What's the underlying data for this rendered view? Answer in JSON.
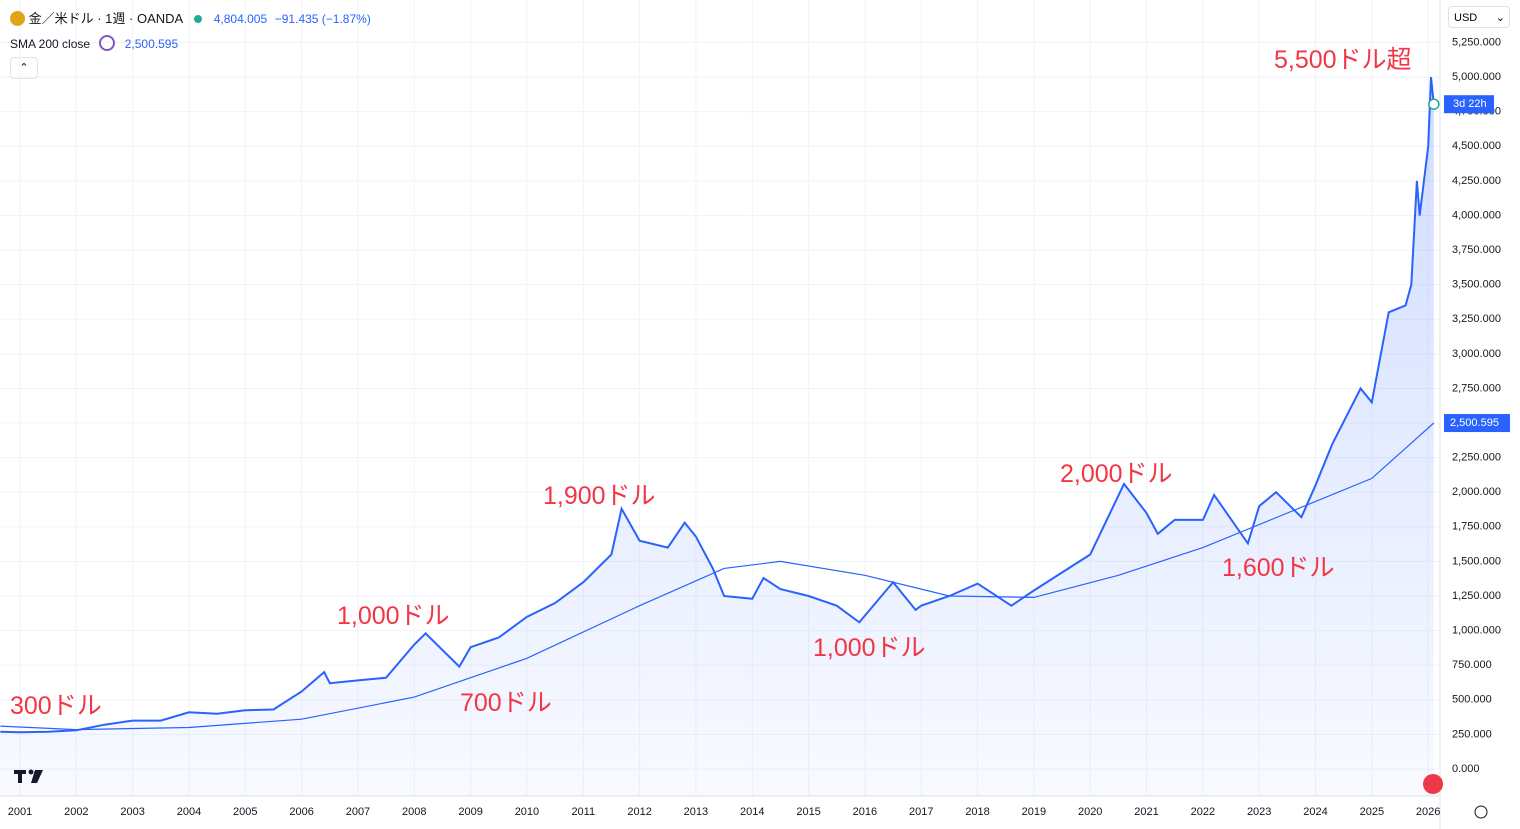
{
  "chart_data": {
    "type": "line",
    "title": "金／米ドル · 1週 · OANDA",
    "last_price": "4,804.005",
    "change": "−91.435 (−1.87%)",
    "indicator": "SMA 200 close",
    "indicator_value": "2,500.595",
    "currency": "USD",
    "countdown": "3d 22h",
    "xlim": [
      2000.645,
      2026.21
    ],
    "xticks": [
      2001,
      2002,
      2003,
      2004,
      2005,
      2006,
      2007,
      2008,
      2009,
      2010,
      2011,
      2012,
      2013,
      2014,
      2015,
      2016,
      2017,
      2018,
      2019,
      2020,
      2021,
      2022,
      2023,
      2024,
      2025,
      2026
    ],
    "ylim": [
      -195,
      5557
    ],
    "yticks": [
      {
        "value": 0,
        "label": "0.000"
      },
      {
        "value": 250,
        "label": "250.000"
      },
      {
        "value": 500,
        "label": "500.000"
      },
      {
        "value": 750,
        "label": "750.000"
      },
      {
        "value": 1000,
        "label": "1,000.000"
      },
      {
        "value": 1250,
        "label": "1,250.000"
      },
      {
        "value": 1500,
        "label": "1,500.000"
      },
      {
        "value": 1750,
        "label": "1,750.000"
      },
      {
        "value": 2000,
        "label": "2,000.000"
      },
      {
        "value": 2250,
        "label": "2,250.000"
      },
      {
        "value": 2500,
        "label": "2,500.000"
      },
      {
        "value": 2750,
        "label": "2,750.000"
      },
      {
        "value": 3000,
        "label": "3,000.000"
      },
      {
        "value": 3250,
        "label": "3,250.000"
      },
      {
        "value": 3500,
        "label": "3,500.000"
      },
      {
        "value": 3750,
        "label": "3,750.000"
      },
      {
        "value": 4000,
        "label": "4,000.000"
      },
      {
        "value": 4250,
        "label": "4,250.000"
      },
      {
        "value": 4500,
        "label": "4,500.000"
      },
      {
        "value": 4750,
        "label": "4,750.000"
      },
      {
        "value": 5000,
        "label": "5,000.000"
      },
      {
        "value": 5250,
        "label": "5,250.000"
      }
    ],
    "grid": true,
    "series": [
      {
        "name": "金／米ドル",
        "color": "#2962ff",
        "x": [
          2000.65,
          2001.0,
          2001.5,
          2002.0,
          2002.5,
          2003.0,
          2003.5,
          2004.0,
          2004.5,
          2005.0,
          2005.5,
          2006.0,
          2006.4,
          2006.5,
          2007.0,
          2007.5,
          2008.0,
          2008.2,
          2008.8,
          2009.0,
          2009.5,
          2010.0,
          2010.5,
          2011.0,
          2011.5,
          2011.68,
          2012.0,
          2012.5,
          2012.8,
          2013.0,
          2013.3,
          2013.5,
          2014.0,
          2014.2,
          2014.5,
          2015.0,
          2015.5,
          2015.9,
          2016.5,
          2016.9,
          2017.0,
          2017.5,
          2018.0,
          2018.6,
          2019.0,
          2019.5,
          2020.0,
          2020.6,
          2021.0,
          2021.2,
          2021.5,
          2022.0,
          2022.2,
          2022.8,
          2023.0,
          2023.3,
          2023.75,
          2024.0,
          2024.3,
          2024.8,
          2025.0,
          2025.3,
          2025.6,
          2025.7,
          2025.8,
          2025.85,
          2026.0,
          2026.05,
          2026.1
        ],
        "values": [
          270,
          265,
          270,
          280,
          320,
          350,
          350,
          410,
          400,
          425,
          430,
          560,
          700,
          620,
          640,
          660,
          900,
          980,
          740,
          880,
          950,
          1100,
          1200,
          1350,
          1550,
          1880,
          1650,
          1600,
          1780,
          1680,
          1450,
          1250,
          1230,
          1380,
          1300,
          1250,
          1180,
          1060,
          1350,
          1150,
          1180,
          1250,
          1340,
          1180,
          1290,
          1420,
          1550,
          2060,
          1850,
          1700,
          1800,
          1800,
          1980,
          1630,
          1900,
          2000,
          1820,
          2050,
          2350,
          2750,
          2650,
          3300,
          3350,
          3500,
          4250,
          4000,
          4500,
          5000,
          4804
        ]
      },
      {
        "name": "SMA 200 close",
        "color": "#2962ff",
        "x": [
          2000.65,
          2002,
          2004,
          2006,
          2008,
          2010,
          2012,
          2013.5,
          2014.5,
          2016,
          2017.5,
          2019,
          2020.5,
          2022,
          2023.5,
          2025,
          2026.1
        ],
        "values": [
          310,
          285,
          300,
          360,
          520,
          800,
          1180,
          1450,
          1500,
          1400,
          1250,
          1240,
          1400,
          1600,
          1850,
          2100,
          2500
        ]
      }
    ],
    "annotations": [
      "5,500ドル超",
      "300ドル",
      "1,000ドル",
      "700ドル",
      "1,900ドル",
      "1,000ドル",
      "2,000ドル",
      "1,600ドル"
    ]
  }
}
